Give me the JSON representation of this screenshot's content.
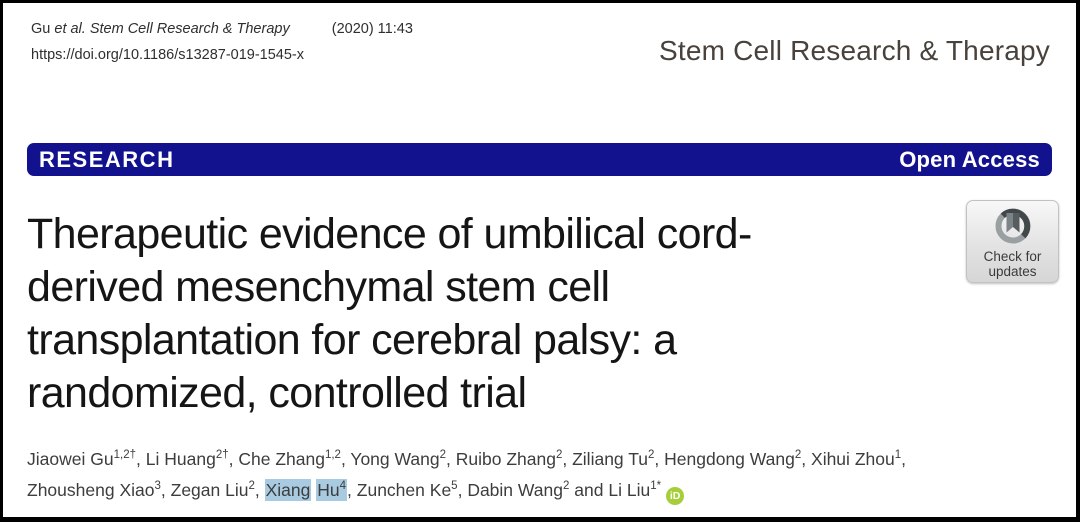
{
  "colors": {
    "banner_bg": "#13128e",
    "highlight": "#a9cbe2",
    "orcid_green": "#a6ce39"
  },
  "header": {
    "citation": {
      "prefix": "Gu",
      "italic": "et al. Stem Cell Research & Therapy",
      "issue": "(2020) 11:43"
    },
    "doi": "https://doi.org/10.1186/s13287-019-1545-x",
    "journal_name": "Stem Cell Research & Therapy"
  },
  "banner": {
    "type_label": "RESEARCH",
    "access_label": "Open Access"
  },
  "article": {
    "title_lines": [
      "Therapeutic evidence of umbilical cord-",
      "derived mesenchymal stem cell",
      "transplantation for cerebral palsy: a",
      "randomized, controlled trial"
    ]
  },
  "update_badge": {
    "line1": "Check for",
    "line2": "updates"
  },
  "authors": {
    "orcid_label": "iD",
    "list": [
      {
        "name": "Jiaowei Gu",
        "sup": "1,2†"
      },
      {
        "name": "Li Huang",
        "sup": "2†"
      },
      {
        "name": "Che Zhang",
        "sup": "1,2"
      },
      {
        "name": "Yong Wang",
        "sup": "2"
      },
      {
        "name": "Ruibo Zhang",
        "sup": "2"
      },
      {
        "name": "Ziliang Tu",
        "sup": "2"
      },
      {
        "name": "Hengdong Wang",
        "sup": "2"
      },
      {
        "name": "Xihui Zhou",
        "sup": "1",
        "break_after": true
      },
      {
        "name": "Zhousheng Xiao",
        "sup": "3"
      },
      {
        "name": "Zegan Liu",
        "sup": "2"
      },
      {
        "name": "Xiang Hu",
        "sup": "4",
        "highlighted": true
      },
      {
        "name": "Zunchen Ke",
        "sup": "5"
      },
      {
        "name": "Dabin Wang",
        "sup": "2"
      },
      {
        "name": "Li Liu",
        "sup": "1*",
        "orcid": true
      }
    ]
  }
}
